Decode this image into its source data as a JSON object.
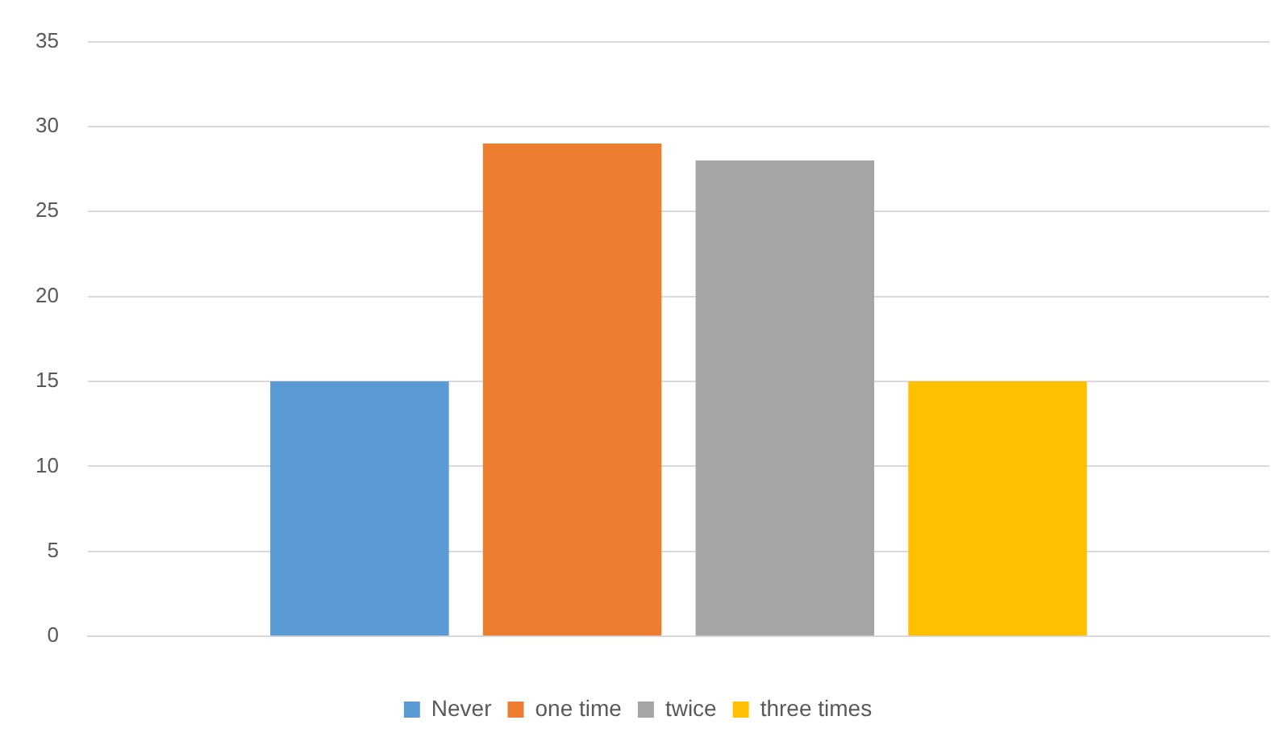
{
  "chart_data": {
    "type": "bar",
    "categories": [
      null
    ],
    "series": [
      {
        "name": "Never",
        "color": "#5b9bd5",
        "values": [
          15
        ]
      },
      {
        "name": "one time",
        "color": "#ed7d31",
        "values": [
          29
        ]
      },
      {
        "name": "twice",
        "color": "#a5a5a5",
        "values": [
          28
        ]
      },
      {
        "name": "three times",
        "color": "#ffc000",
        "values": [
          15
        ]
      }
    ],
    "ylim": [
      0,
      35
    ],
    "yticks": [
      0,
      5,
      10,
      15,
      20,
      25,
      30,
      35
    ],
    "grid": "y",
    "legend": "bottom"
  }
}
